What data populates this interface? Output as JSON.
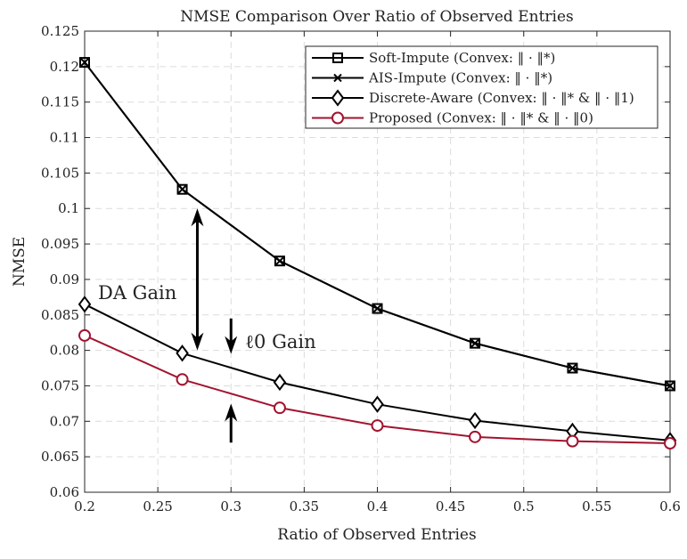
{
  "chart_data": {
    "type": "line",
    "title": "NMSE Comparison Over Ratio of Observed Entries",
    "xlabel": "Ratio of Observed Entries",
    "ylabel": "NMSE",
    "xlim": [
      0.2,
      0.6
    ],
    "ylim": [
      0.06,
      0.125
    ],
    "xticks": [
      "0.2",
      "0.25",
      "0.3",
      "0.35",
      "0.4",
      "0.45",
      "0.5",
      "0.55",
      "0.6"
    ],
    "yticks": [
      "0.06",
      "0.065",
      "0.07",
      "0.075",
      "0.08",
      "0.085",
      "0.09",
      "0.095",
      "0.1",
      "0.105",
      "0.11",
      "0.115",
      "0.12",
      "0.125"
    ],
    "grid": true,
    "legend_position": "top-right",
    "x": [
      0.2,
      0.2667,
      0.3333,
      0.4,
      0.4667,
      0.5333,
      0.6
    ],
    "series": [
      {
        "name": "Soft-Impute (Convex: ‖ · ‖*)",
        "marker": "square",
        "color": "#000000",
        "values": [
          0.1206,
          0.1027,
          0.0926,
          0.0859,
          0.081,
          0.0775,
          0.075
        ]
      },
      {
        "name": "AIS-Impute (Convex: ‖ · ‖*)",
        "marker": "x",
        "color": "#000000",
        "values": [
          0.1206,
          0.1027,
          0.0926,
          0.0859,
          0.081,
          0.0775,
          0.075
        ]
      },
      {
        "name": "Discrete-Aware (Convex: ‖ · ‖* & ‖ · ‖1)",
        "marker": "diamond",
        "color": "#000000",
        "values": [
          0.0865,
          0.0796,
          0.0755,
          0.0724,
          0.0701,
          0.0686,
          0.0673
        ]
      },
      {
        "name": "Proposed (Convex: ‖ · ‖* & ‖ · ‖0)",
        "marker": "circle",
        "color": "#a2142f",
        "values": [
          0.0821,
          0.0759,
          0.0719,
          0.0694,
          0.0678,
          0.0672,
          0.0669
        ]
      }
    ],
    "annotations": [
      {
        "text": "DA Gain",
        "arrow_x": 0.277,
        "arrow_y": [
          0.1,
          0.08
        ],
        "style": "double"
      },
      {
        "text": "ℓ0 Gain",
        "arrow_x": 0.3,
        "arrow_y_down": [
          0.0845,
          0.0795
        ],
        "arrow_y_up": [
          0.067,
          0.0725
        ]
      }
    ]
  }
}
